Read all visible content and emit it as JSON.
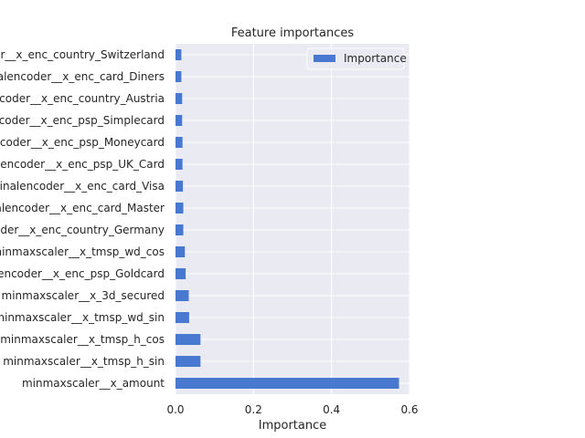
{
  "chart_data": {
    "type": "bar",
    "orientation": "horizontal",
    "title": "Feature importances",
    "xlabel": "Importance",
    "ylabel": "",
    "xlim": [
      0,
      0.6
    ],
    "xticks": [
      0.0,
      0.2,
      0.4,
      0.6
    ],
    "xtick_labels": [
      "0.0",
      "0.2",
      "0.4",
      "0.6"
    ],
    "grid": true,
    "legend_position": "top-right",
    "categories": [
      "minmaxscaler__x_amount",
      "minmaxscaler__x_tmsp_h_sin",
      "minmaxscaler__x_tmsp_h_cos",
      "minmaxscaler__x_tmsp_wd_sin",
      "minmaxscaler__x_3d_secured",
      "ordinalencoder__x_enc_psp_Goldcard",
      "minmaxscaler__x_tmsp_wd_cos",
      "ordinalencoder__x_enc_country_Germany",
      "ordinalencoder__x_enc_card_Master",
      "ordinalencoder__x_enc_card_Visa",
      "ordinalencoder__x_enc_psp_UK_Card",
      "ordinalencoder__x_enc_psp_Moneycard",
      "ordinalencoder__x_enc_psp_Simplecard",
      "ordinalencoder__x_enc_country_Austria",
      "ordinalencoder__x_enc_card_Diners",
      "ordinalencoder__x_enc_country_Switzerland"
    ],
    "series": [
      {
        "name": "Importance",
        "color": "#4878cf",
        "values": [
          0.573,
          0.064,
          0.064,
          0.035,
          0.034,
          0.026,
          0.024,
          0.02,
          0.02,
          0.019,
          0.018,
          0.018,
          0.017,
          0.017,
          0.015,
          0.015
        ]
      }
    ],
    "colors": {
      "plot_background": "#eaeaf2",
      "grid": "#ffffff",
      "bar": "#4878cf"
    }
  }
}
